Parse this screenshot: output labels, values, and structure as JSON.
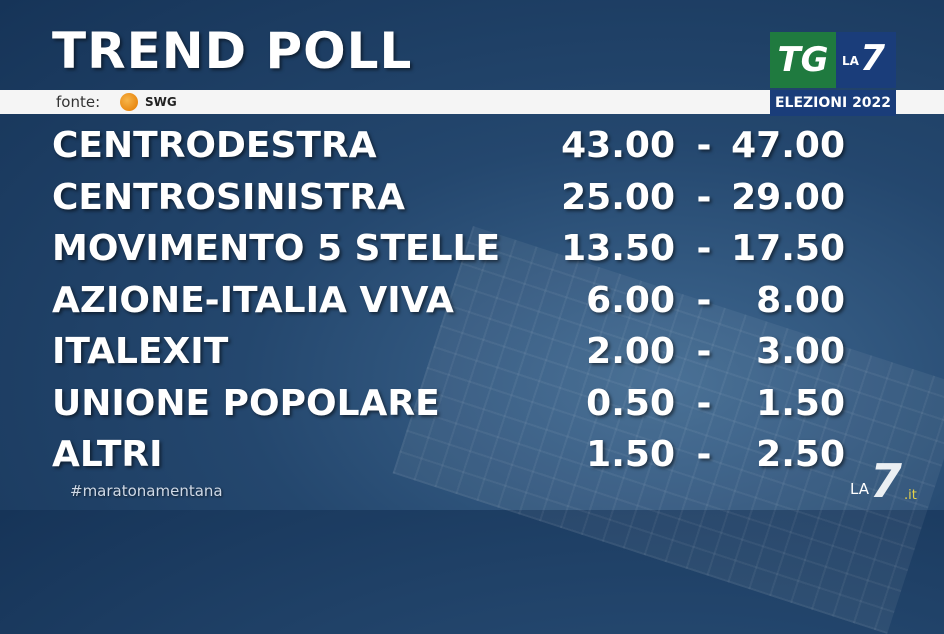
{
  "header": {
    "title": "TREND POLL"
  },
  "source": {
    "label": "fonte:",
    "brand": "SWG"
  },
  "broadcast_logo": {
    "tg": "TG",
    "la": "LA",
    "seven": "7",
    "subtitle": "ELEZIONI 2022"
  },
  "colors": {
    "background": "#1f4068",
    "text": "#ffffff",
    "tg_green": "#1f7a3f",
    "la7_blue": "#1a3d7a"
  },
  "chart_data": {
    "type": "table",
    "columns": [
      "party",
      "low",
      "high"
    ],
    "rows": [
      {
        "party": "CENTRODESTRA",
        "low": "43.00",
        "high": "47.00"
      },
      {
        "party": "CENTROSINISTRA",
        "low": "25.00",
        "high": "29.00"
      },
      {
        "party": "MOVIMENTO 5 STELLE",
        "low": "13.50",
        "high": "17.50"
      },
      {
        "party": "AZIONE-ITALIA VIVA",
        "low": "6.00",
        "high": "8.00"
      },
      {
        "party": "ITALEXIT",
        "low": "2.00",
        "high": "3.00"
      },
      {
        "party": "UNIONE POPOLARE",
        "low": "0.50",
        "high": "1.50"
      },
      {
        "party": "ALTRI",
        "low": "1.50",
        "high": "2.50"
      }
    ],
    "separator": "-"
  },
  "footer": {
    "hashtag": "#maratonamentana",
    "corner_la": "LA",
    "corner_7": "7",
    "corner_it": ".it"
  }
}
